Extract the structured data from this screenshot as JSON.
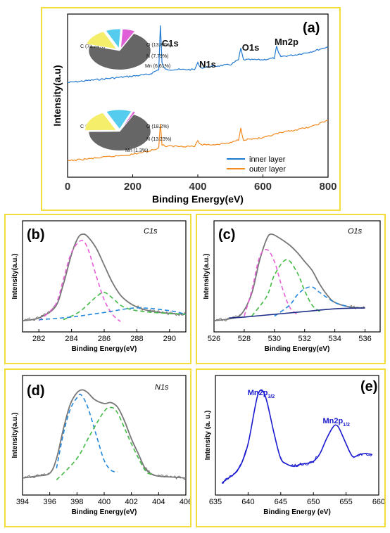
{
  "chart_data": [
    {
      "id": "a",
      "type": "line",
      "panel_label": "(a)",
      "xlabel": "Binding Energy(eV)",
      "ylabel": "Intensity(a.u)",
      "xlim": [
        0,
        800
      ],
      "xticks": [
        0,
        200,
        400,
        600,
        800
      ],
      "peak_labels": [
        {
          "text": "C1s",
          "x": 285
        },
        {
          "text": "N1s",
          "x": 400
        },
        {
          "text": "O1s",
          "x": 532
        },
        {
          "text": "Mn2p",
          "x": 642
        }
      ],
      "legend": {
        "position": "bottom-right"
      },
      "series": [
        {
          "name": "inner layer",
          "color": "#1f78d1",
          "x": [
            0,
            100,
            200,
            250,
            280,
            285,
            290,
            300,
            350,
            390,
            400,
            410,
            450,
            500,
            525,
            532,
            540,
            600,
            635,
            642,
            648,
            655,
            700,
            750,
            800
          ],
          "y": [
            0.58,
            0.6,
            0.62,
            0.63,
            0.66,
            0.93,
            0.7,
            0.66,
            0.66,
            0.66,
            0.7,
            0.67,
            0.68,
            0.69,
            0.72,
            0.79,
            0.72,
            0.72,
            0.73,
            0.8,
            0.76,
            0.74,
            0.75,
            0.77,
            0.8
          ]
        },
        {
          "name": "outer layer",
          "color": "#f28a1e",
          "x": [
            0,
            100,
            200,
            250,
            280,
            285,
            290,
            300,
            350,
            390,
            400,
            410,
            450,
            500,
            525,
            532,
            540,
            600,
            650,
            700,
            750,
            800
          ],
          "y": [
            0.1,
            0.12,
            0.14,
            0.16,
            0.18,
            0.33,
            0.2,
            0.19,
            0.19,
            0.19,
            0.22,
            0.2,
            0.2,
            0.21,
            0.23,
            0.3,
            0.23,
            0.24,
            0.27,
            0.29,
            0.31,
            0.35
          ]
        }
      ],
      "pies": [
        {
          "slices": [
            {
              "label": "C (71.74%)",
              "value": 71.74,
              "color": "#666666"
            },
            {
              "label": "O (13.87%)",
              "value": 13.87,
              "color": "#f4ee6a"
            },
            {
              "label": "N (7.79%)",
              "value": 7.79,
              "color": "#55ccee"
            },
            {
              "label": "Mn (6.61%)",
              "value": 6.61,
              "color": "#e060d8"
            }
          ]
        },
        {
          "slices": [
            {
              "label": "C (67.27%)",
              "value": 67.27,
              "color": "#666666"
            },
            {
              "label": "O (18.2%)",
              "value": 18.2,
              "color": "#f4ee6a"
            },
            {
              "label": "N (13.23%)",
              "value": 13.23,
              "color": "#55ccee"
            },
            {
              "label": "Mn (1.3%)",
              "value": 1.3,
              "color": "#e060d8"
            }
          ]
        }
      ]
    },
    {
      "id": "b",
      "type": "line",
      "panel_label": "(b)",
      "title": "C1s",
      "xlabel": "Binding Energy(eV)",
      "ylabel": "Intensity(a.u.)",
      "xlim": [
        281,
        291
      ],
      "xticks": [
        282,
        284,
        286,
        288,
        290
      ],
      "series": [
        {
          "role": "spectrum",
          "style": "solid",
          "color": "#777777",
          "x": [
            281,
            282,
            283,
            283.5,
            284,
            284.4,
            284.7,
            285,
            285.5,
            286,
            286.5,
            287,
            287.5,
            288,
            288.5,
            289,
            290,
            291
          ],
          "y": [
            0.05,
            0.08,
            0.2,
            0.45,
            0.78,
            0.96,
            1.0,
            0.97,
            0.85,
            0.66,
            0.47,
            0.33,
            0.25,
            0.2,
            0.17,
            0.15,
            0.13,
            0.12
          ]
        },
        {
          "role": "fit",
          "style": "dashed",
          "color": "#e860d8",
          "x": [
            282,
            283,
            283.5,
            284,
            284.6,
            285,
            285.5,
            286,
            286.5,
            287
          ],
          "y": [
            0.05,
            0.22,
            0.5,
            0.8,
            0.93,
            0.84,
            0.55,
            0.28,
            0.12,
            0.04
          ]
        },
        {
          "role": "fit",
          "style": "dashed",
          "color": "#44bb44",
          "x": [
            283.5,
            284.5,
            285.5,
            286,
            286.5,
            287,
            287.5,
            288,
            289,
            290,
            291
          ],
          "y": [
            0.06,
            0.15,
            0.31,
            0.36,
            0.3,
            0.22,
            0.18,
            0.16,
            0.14,
            0.13,
            0.12
          ]
        },
        {
          "role": "baseline",
          "style": "dashed",
          "color": "#2288dd",
          "x": [
            282,
            284,
            286,
            288,
            290,
            291
          ],
          "y": [
            0.06,
            0.09,
            0.14,
            0.19,
            0.16,
            0.12
          ]
        }
      ]
    },
    {
      "id": "c",
      "type": "line",
      "panel_label": "(c)",
      "title": "O1s",
      "xlabel": "Binding Energy(eV)",
      "ylabel": "Intensity(a.u.)",
      "xlim": [
        526,
        537
      ],
      "xticks": [
        526,
        528,
        530,
        532,
        534,
        536
      ],
      "series": [
        {
          "role": "spectrum",
          "style": "solid",
          "color": "#777777",
          "x": [
            526,
            527,
            527.8,
            528.5,
            529,
            529.5,
            529.8,
            530.3,
            531,
            531.5,
            532,
            532.5,
            533,
            533.5,
            534,
            535,
            536
          ],
          "y": [
            0.05,
            0.07,
            0.12,
            0.35,
            0.7,
            0.95,
            1.0,
            0.96,
            0.88,
            0.8,
            0.7,
            0.6,
            0.45,
            0.33,
            0.25,
            0.2,
            0.19
          ]
        },
        {
          "role": "fit",
          "style": "dashed",
          "color": "#e860d8",
          "x": [
            528,
            528.5,
            529,
            529.5,
            530,
            530.5,
            531,
            531.5
          ],
          "y": [
            0.1,
            0.38,
            0.74,
            0.83,
            0.7,
            0.42,
            0.2,
            0.12
          ]
        },
        {
          "role": "fit",
          "style": "dashed",
          "color": "#44bb44",
          "x": [
            528.5,
            529.5,
            530,
            530.8,
            531.5,
            532,
            532.5,
            533
          ],
          "y": [
            0.1,
            0.32,
            0.55,
            0.72,
            0.58,
            0.38,
            0.22,
            0.15
          ]
        },
        {
          "role": "fit",
          "style": "dashed",
          "color": "#2288dd",
          "x": [
            530,
            531,
            531.5,
            532,
            532.5,
            533,
            534,
            535
          ],
          "y": [
            0.1,
            0.22,
            0.33,
            0.4,
            0.42,
            0.36,
            0.25,
            0.2
          ]
        },
        {
          "role": "baseline",
          "style": "solid",
          "color": "#1f2f88",
          "x": [
            527,
            528,
            530,
            532,
            534,
            536
          ],
          "y": [
            0.08,
            0.09,
            0.12,
            0.15,
            0.18,
            0.19
          ]
        }
      ]
    },
    {
      "id": "d",
      "type": "line",
      "panel_label": "(d)",
      "title": "N1s",
      "xlabel": "Binding Energy(eV)",
      "ylabel": "Intensity(a.u.)",
      "xlim": [
        394,
        406
      ],
      "xticks": [
        394,
        396,
        398,
        400,
        402,
        404,
        406
      ],
      "series": [
        {
          "role": "spectrum",
          "style": "solid",
          "color": "#777777",
          "x": [
            394,
            395,
            396,
            396.5,
            397,
            397.5,
            398,
            398.4,
            398.8,
            399.3,
            400,
            400.5,
            401,
            401.5,
            402,
            402.5,
            403,
            403.5,
            404,
            405,
            406
          ],
          "y": [
            0.1,
            0.12,
            0.15,
            0.3,
            0.6,
            0.85,
            0.97,
            1.0,
            0.97,
            0.9,
            0.86,
            0.87,
            0.82,
            0.68,
            0.5,
            0.35,
            0.2,
            0.14,
            0.12,
            0.11,
            0.1
          ]
        },
        {
          "role": "fit",
          "style": "dashed",
          "color": "#2288dd",
          "x": [
            396.5,
            397,
            397.5,
            398,
            398.3,
            398.8,
            399.5,
            400,
            400.5,
            401
          ],
          "y": [
            0.2,
            0.55,
            0.8,
            0.92,
            0.95,
            0.82,
            0.5,
            0.28,
            0.18,
            0.16
          ]
        },
        {
          "role": "fit",
          "style": "dashed",
          "color": "#44bb44",
          "x": [
            396.5,
            398,
            399,
            400,
            400.5,
            401,
            402,
            403,
            403.5
          ],
          "y": [
            0.08,
            0.3,
            0.55,
            0.78,
            0.82,
            0.76,
            0.45,
            0.18,
            0.14
          ]
        }
      ]
    },
    {
      "id": "e",
      "type": "line",
      "panel_label": "(e)",
      "xlabel": "Binding Energy (eV)",
      "ylabel": "Intensity (a. u.)",
      "xlim": [
        635,
        660
      ],
      "xticks": [
        635,
        640,
        645,
        650,
        655,
        660
      ],
      "peak_labels": [
        {
          "text": "Mn2p",
          "sub": "3/2",
          "x": 642
        },
        {
          "text": "Mn2p",
          "sub": "1/2",
          "x": 653.5
        }
      ],
      "series": [
        {
          "role": "spectrum",
          "style": "solid",
          "color": "#1a1ad0",
          "x": [
            636,
            637,
            638,
            639,
            640,
            641,
            641.5,
            642,
            642.5,
            643,
            644,
            645,
            646,
            647,
            648,
            649,
            650,
            651,
            652,
            653,
            653.5,
            654,
            655,
            656,
            657,
            658,
            659
          ],
          "y": [
            0.05,
            0.1,
            0.15,
            0.25,
            0.45,
            0.8,
            0.95,
            1.0,
            0.96,
            0.85,
            0.55,
            0.3,
            0.24,
            0.22,
            0.24,
            0.25,
            0.27,
            0.35,
            0.5,
            0.62,
            0.64,
            0.6,
            0.45,
            0.32,
            0.34,
            0.35,
            0.34
          ]
        }
      ]
    }
  ]
}
